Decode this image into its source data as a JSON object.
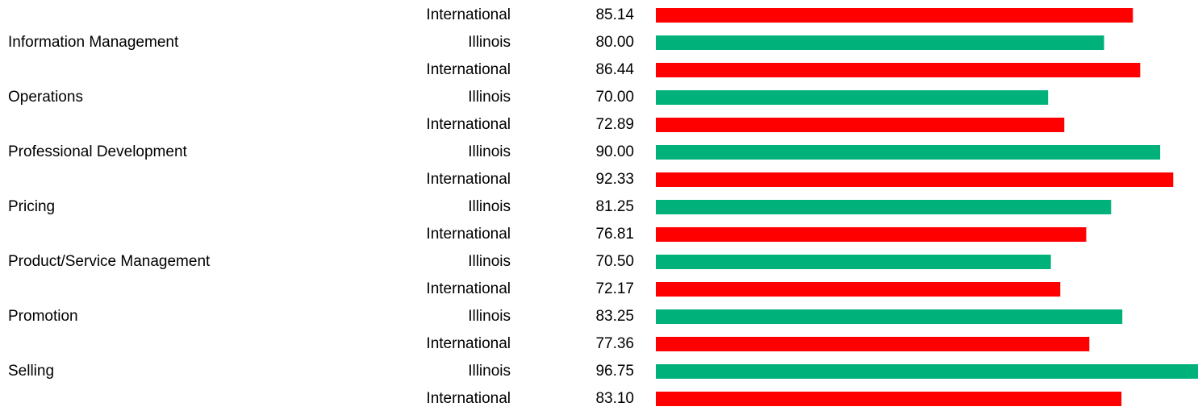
{
  "chart_data": {
    "type": "bar",
    "orientation": "horizontal",
    "groups": [
      null,
      "Information Management",
      null,
      "Operations",
      null,
      "Professional Development",
      null,
      "Pricing",
      null,
      "Product/Service Management",
      null,
      "Promotion",
      null,
      "Selling",
      null
    ],
    "regions": [
      "International",
      "Illinois",
      "International",
      "Illinois",
      "International",
      "Illinois",
      "International",
      "Illinois",
      "International",
      "Illinois",
      "International",
      "Illinois",
      "International",
      "Illinois",
      "International"
    ],
    "values": [
      85.14,
      80,
      86.44,
      70,
      72.89,
      90,
      92.33,
      81.25,
      76.81,
      70.5,
      72.17,
      83.25,
      77.36,
      96.75,
      83.1
    ],
    "value_labels": [
      "85.14",
      "80.00",
      "86.44",
      "70.00",
      "72.89",
      "90.00",
      "92.33",
      "81.25",
      "76.81",
      "70.50",
      "72.17",
      "83.25",
      "77.36",
      "96.75",
      "83.10"
    ],
    "region_colors": {
      "Illinois": "#00b27a",
      "International": "#ff0000"
    }
  }
}
